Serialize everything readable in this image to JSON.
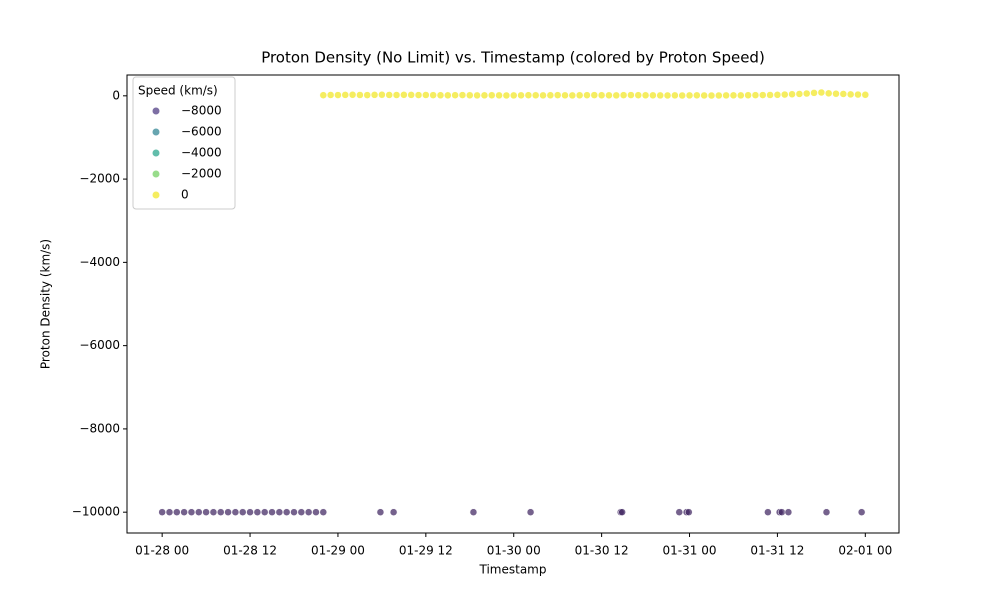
{
  "chart_data": {
    "type": "scatter",
    "title": "Proton Density (No Limit) vs. Timestamp (colored by Proton Speed)",
    "x_label": "Timestamp",
    "y_label": "Proton Density (km/s)",
    "xlim": [
      -4.8,
      100.6
    ],
    "ylim": [
      -10500,
      500
    ],
    "xticks": [
      {
        "value": 0,
        "label": "01-28 00"
      },
      {
        "value": 12,
        "label": "01-28 12"
      },
      {
        "value": 24,
        "label": "01-29 00"
      },
      {
        "value": 36,
        "label": "01-29 12"
      },
      {
        "value": 48,
        "label": "01-30 00"
      },
      {
        "value": 60,
        "label": "01-30 12"
      },
      {
        "value": 72,
        "label": "01-31 00"
      },
      {
        "value": 84,
        "label": "01-31 12"
      },
      {
        "value": 96,
        "label": "02-01 00"
      }
    ],
    "yticks": [
      {
        "value": -10000,
        "label": "−10000"
      },
      {
        "value": -8000,
        "label": "−8000"
      },
      {
        "value": -6000,
        "label": "−6000"
      },
      {
        "value": -4000,
        "label": "−4000"
      },
      {
        "value": -2000,
        "label": "−2000"
      },
      0
    ],
    "legend": {
      "title": "Speed (km/s)",
      "corner": "upper left",
      "entries": [
        {
          "value": -8000,
          "label": "−8000",
          "color": "#46327e"
        },
        {
          "value": -6000,
          "label": "−6000",
          "color": "#277f8e"
        },
        {
          "value": -4000,
          "label": "−4000",
          "color": "#1fa187"
        },
        {
          "value": -2000,
          "label": "−2000",
          "color": "#6ccd5a"
        },
        {
          "value": 0,
          "label": "0",
          "color": "#f1e51d"
        }
      ]
    },
    "series": [
      {
        "color": "#3b1f5c",
        "x": [
          0,
          1,
          2,
          3,
          4,
          5,
          6,
          7,
          8,
          9,
          10,
          11,
          12,
          13,
          14,
          15,
          16,
          17,
          18,
          19,
          20,
          21,
          22,
          29.8,
          31.6,
          42.5,
          50.3,
          62.6,
          62.8,
          70.6,
          71.6,
          71.9,
          82.7,
          84.3,
          84.6,
          85.5,
          90.7,
          95.5
        ],
        "values": [
          -10000,
          -10000,
          -10000,
          -10000,
          -10000,
          -10000,
          -10000,
          -10000,
          -10000,
          -10000,
          -10000,
          -10000,
          -10000,
          -10000,
          -10000,
          -10000,
          -10000,
          -10000,
          -10000,
          -10000,
          -10000,
          -10000,
          -10000,
          -10000,
          -10000,
          -10000,
          -10000,
          -10000,
          -10000,
          -10000,
          -10000,
          -10000,
          -10000,
          -10000,
          -10000,
          -10000,
          -10000,
          -10000
        ]
      },
      {
        "color": "#f1e51d",
        "x": [
          22,
          23,
          24,
          25,
          26,
          27,
          28,
          29,
          30,
          31,
          32,
          33,
          34,
          35,
          36,
          37,
          38,
          39,
          40,
          41,
          42,
          43,
          44,
          45,
          46,
          47,
          48,
          49,
          50,
          51,
          52,
          53,
          54,
          55,
          56,
          57,
          58,
          59,
          60,
          61,
          62,
          63,
          64,
          65,
          66,
          67,
          68,
          69,
          70,
          71,
          72,
          73,
          74,
          75,
          76,
          77,
          78,
          79,
          80,
          81,
          82,
          83,
          84,
          85,
          86,
          87,
          88,
          89,
          90,
          91,
          92,
          93,
          94,
          95,
          96
        ],
        "values": [
          15,
          20,
          18,
          22,
          25,
          20,
          17,
          23,
          26,
          21,
          19,
          24,
          22,
          18,
          20,
          16,
          14,
          12,
          15,
          18,
          13,
          10,
          12,
          14,
          11,
          9,
          10,
          12,
          15,
          13,
          11,
          14,
          16,
          12,
          10,
          13,
          15,
          17,
          14,
          12,
          11,
          16,
          18,
          15,
          13,
          12,
          10,
          9,
          11,
          8,
          10,
          12,
          9,
          7,
          8,
          10,
          12,
          11,
          14,
          16,
          18,
          20,
          24,
          30,
          38,
          45,
          55,
          70,
          80,
          60,
          50,
          45,
          35,
          30,
          25
        ]
      }
    ]
  }
}
